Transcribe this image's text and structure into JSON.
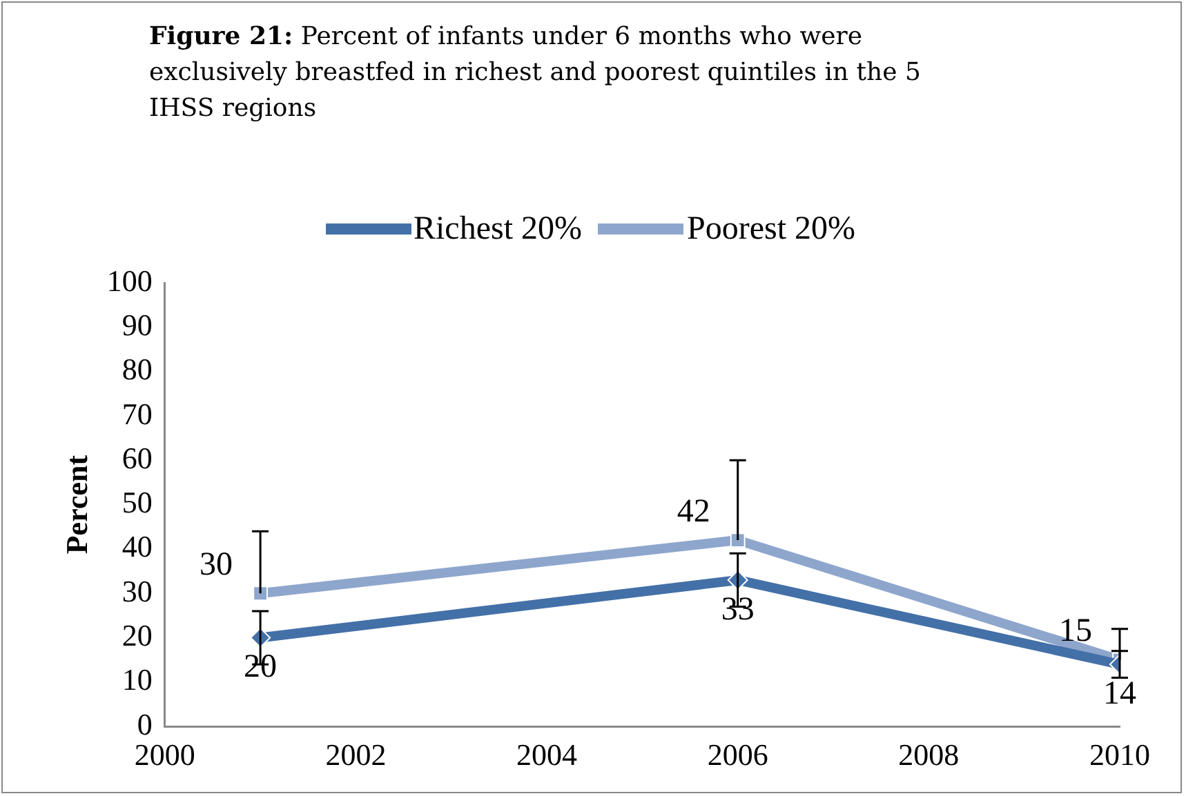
{
  "chart_data": {
    "type": "line",
    "title": "Figure 21: Percent of infants under 6 months who were exclusively breastfed in richest and poorest quintiles in the 5 IHSS regions",
    "ylabel": "Percent",
    "x": [
      2001,
      2006,
      2010
    ],
    "series": [
      {
        "name": "Richest 20%",
        "color": "#4470a8",
        "values": [
          20,
          33,
          14
        ],
        "errors": [
          [
            14,
            26
          ],
          [
            27,
            39
          ],
          [
            11,
            17
          ]
        ],
        "marker": "diamond"
      },
      {
        "name": "Poorest 20%",
        "color": "#8ea6cc",
        "values": [
          30,
          42,
          15
        ],
        "errors": [
          [
            30,
            44
          ],
          [
            42,
            60
          ],
          [
            15,
            22
          ]
        ],
        "marker": "square"
      }
    ],
    "xlim": [
      2000,
      2010
    ],
    "xticks": [
      2000,
      2002,
      2004,
      2006,
      2008,
      2010
    ],
    "ylim": [
      0,
      100
    ],
    "yticks": [
      0,
      10,
      20,
      30,
      40,
      50,
      60,
      70,
      80,
      90,
      100
    ],
    "grid": false,
    "legend": "top",
    "data_labels": true,
    "line_style": "solid"
  }
}
